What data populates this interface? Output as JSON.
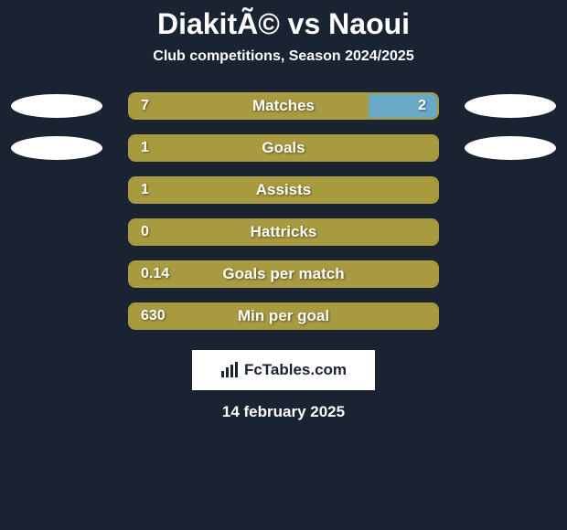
{
  "title": "DiakitÃ© vs Naoui",
  "subtitle": "Club competitions, Season 2024/2025",
  "colors": {
    "background": "#1a2332",
    "left_bar": "#a89a3f",
    "right_bar": "#6aa8c8",
    "border": "#a89a3f",
    "text": "#ffffff",
    "jersey": "#ffffff"
  },
  "stats": [
    {
      "label": "Matches",
      "left_val": "7",
      "right_val": "2",
      "left_pct": 77.8,
      "right_pct": 22.2,
      "show_jerseys": true,
      "show_right_val": true
    },
    {
      "label": "Goals",
      "left_val": "1",
      "right_val": "",
      "left_pct": 100,
      "right_pct": 0,
      "show_jerseys": true,
      "show_right_val": false
    },
    {
      "label": "Assists",
      "left_val": "1",
      "right_val": "",
      "left_pct": 100,
      "right_pct": 0,
      "show_jerseys": false,
      "show_right_val": false
    },
    {
      "label": "Hattricks",
      "left_val": "0",
      "right_val": "",
      "left_pct": 100,
      "right_pct": 0,
      "show_jerseys": false,
      "show_right_val": false
    },
    {
      "label": "Goals per match",
      "left_val": "0.14",
      "right_val": "",
      "left_pct": 100,
      "right_pct": 0,
      "show_jerseys": false,
      "show_right_val": false
    },
    {
      "label": "Min per goal",
      "left_val": "630",
      "right_val": "",
      "left_pct": 100,
      "right_pct": 0,
      "show_jerseys": false,
      "show_right_val": false
    }
  ],
  "footer": {
    "logo_text": "FcTables.com",
    "date": "14 february 2025"
  }
}
